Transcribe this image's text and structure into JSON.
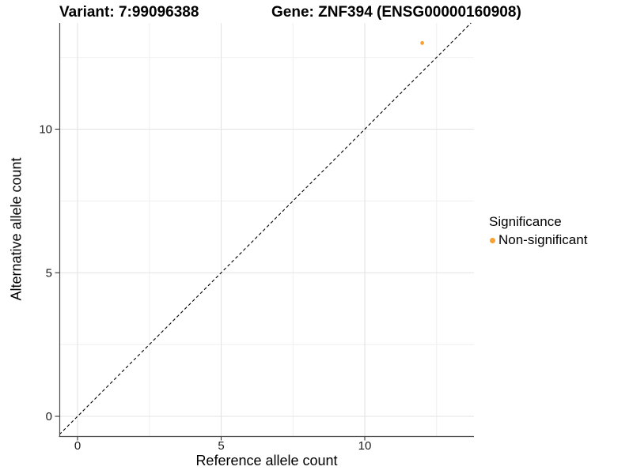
{
  "titles": {
    "variant": "Variant: 7:99096388",
    "gene": "Gene: ZNF394 (ENSG00000160908)"
  },
  "legend": {
    "title": "Significance",
    "entries": [
      {
        "label": "Non-significant",
        "color": "#F9A231"
      }
    ]
  },
  "chart_data": {
    "type": "scatter",
    "title_left": "Variant: 7:99096388",
    "title_right": "Gene: ZNF394 (ENSG00000160908)",
    "xlabel": "Reference allele count",
    "ylabel": "Alternative allele count",
    "x_ticks": [
      0,
      5,
      10
    ],
    "y_ticks": [
      0,
      5,
      10
    ],
    "x_minor_ticks": [
      2.5,
      7.5,
      12.5
    ],
    "y_minor_ticks": [
      2.5,
      7.5,
      12.5
    ],
    "xlim": [
      -0.63,
      13.8
    ],
    "ylim": [
      -0.69,
      13.7
    ],
    "grid": true,
    "legend_position": "right",
    "legend_title": "Significance",
    "series": [
      {
        "name": "Non-significant",
        "color": "#F9A231",
        "points": [
          {
            "x": 12,
            "y": 13
          }
        ]
      }
    ],
    "reference_line": {
      "type": "identity",
      "slope": 1,
      "intercept": 0,
      "style": "dashed",
      "color": "#000000"
    }
  },
  "colors": {
    "background": "#FFFFFF",
    "axis": "#4D4D4D",
    "tick": "#333333",
    "tick_label": "#1A1A1A",
    "grid_major": "#E3E3E3",
    "grid_minor": "#EFEFEF",
    "point": "#F9A231"
  }
}
